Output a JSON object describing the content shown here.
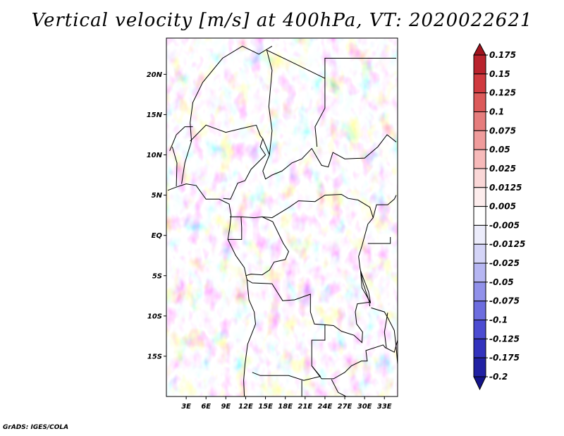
{
  "chart_data": {
    "type": "heatmap",
    "title": "Vertical velocity [m/s] at 400hPa, VT: 2020022621",
    "variable": "Vertical velocity",
    "units": "m/s",
    "level": "400hPa",
    "valid_time": "2020022621",
    "x_axis": {
      "range": [
        0,
        35
      ],
      "ticks": [
        3,
        6,
        9,
        12,
        15,
        18,
        21,
        24,
        27,
        30,
        33
      ],
      "tick_labels": [
        "3E",
        "6E",
        "9E",
        "12E",
        "15E",
        "18E",
        "21E",
        "24E",
        "27E",
        "30E",
        "33E"
      ]
    },
    "y_axis": {
      "range": [
        -20,
        24.5
      ],
      "ticks": [
        20,
        15,
        10,
        5,
        0,
        -5,
        -10,
        -15
      ],
      "tick_labels": [
        "20N",
        "15N",
        "10N",
        "5N",
        "EQ",
        "5S",
        "10S",
        "15S"
      ]
    },
    "colorbar": {
      "levels": [
        "0.175",
        "0.15",
        "0.125",
        "0.1",
        "0.075",
        "0.05",
        "0.025",
        "0.0125",
        "0.005",
        "-0.005",
        "-0.0125",
        "-0.025",
        "-0.05",
        "-0.075",
        "-0.1",
        "-0.125",
        "-0.175",
        "-0.2"
      ],
      "colors": [
        "#a0141e",
        "#b9232d",
        "#d03a3f",
        "#dc5a5a",
        "#e67d7d",
        "#f09c9c",
        "#f7baba",
        "#fad7d7",
        "#fdeded",
        "#ffffff",
        "#ececfb",
        "#d4d4f7",
        "#b6b6f2",
        "#9191ea",
        "#6d6ddf",
        "#4c4cd2",
        "#3232bd",
        "#2121a3",
        "#14148a"
      ]
    },
    "credit": "GrADS: IGES/COLA"
  }
}
